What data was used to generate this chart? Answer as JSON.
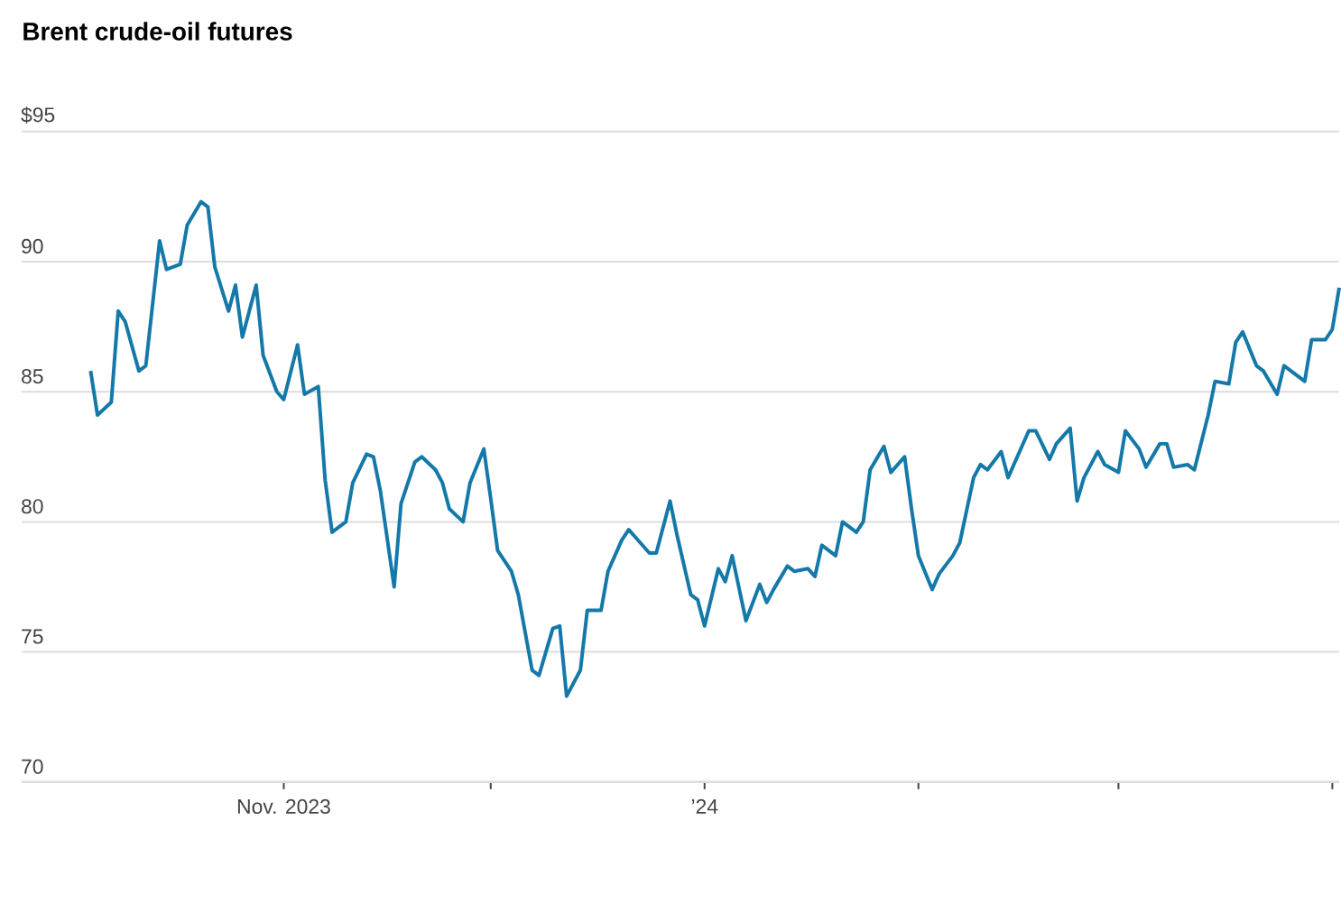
{
  "chart_data": {
    "type": "line",
    "title": "Brent crude-oil futures",
    "x": [
      "2023-10-04",
      "2023-10-05",
      "2023-10-07",
      "2023-10-08",
      "2023-10-09",
      "2023-10-11",
      "2023-10-12",
      "2023-10-14",
      "2023-10-15",
      "2023-10-17",
      "2023-10-18",
      "2023-10-20",
      "2023-10-21",
      "2023-10-22",
      "2023-10-24",
      "2023-10-25",
      "2023-10-26",
      "2023-10-28",
      "2023-10-29",
      "2023-10-31",
      "2023-11-01",
      "2023-11-03",
      "2023-11-04",
      "2023-11-06",
      "2023-11-07",
      "2023-11-08",
      "2023-11-10",
      "2023-11-11",
      "2023-11-13",
      "2023-11-14",
      "2023-11-15",
      "2023-11-17",
      "2023-11-18",
      "2023-11-20",
      "2023-11-21",
      "2023-11-23",
      "2023-11-24",
      "2023-11-25",
      "2023-11-27",
      "2023-11-28",
      "2023-11-30",
      "2023-12-01",
      "2023-12-02",
      "2023-12-04",
      "2023-12-05",
      "2023-12-07",
      "2023-12-08",
      "2023-12-10",
      "2023-12-11",
      "2023-12-12",
      "2023-12-14",
      "2023-12-15",
      "2023-12-17",
      "2023-12-18",
      "2023-12-20",
      "2023-12-21",
      "2023-12-22",
      "2023-12-24",
      "2023-12-25",
      "2023-12-27",
      "2023-12-28",
      "2023-12-30",
      "2023-12-31",
      "2024-01-01",
      "2024-01-03",
      "2024-01-04",
      "2024-01-05",
      "2024-01-07",
      "2024-01-09",
      "2024-01-10",
      "2024-01-11",
      "2024-01-13",
      "2024-01-14",
      "2024-01-16",
      "2024-01-17",
      "2024-01-18",
      "2024-01-20",
      "2024-01-21",
      "2024-01-23",
      "2024-01-24",
      "2024-01-25",
      "2024-01-27",
      "2024-01-28",
      "2024-01-30",
      "2024-01-31",
      "2024-02-01",
      "2024-02-03",
      "2024-02-04",
      "2024-02-06",
      "2024-02-07",
      "2024-02-09",
      "2024-02-10",
      "2024-02-11",
      "2024-02-13",
      "2024-02-14",
      "2024-02-16",
      "2024-02-17",
      "2024-02-18",
      "2024-02-20",
      "2024-02-21",
      "2024-02-23",
      "2024-02-24",
      "2024-02-25",
      "2024-02-27",
      "2024-02-28",
      "2024-03-01",
      "2024-03-02",
      "2024-03-04",
      "2024-03-05",
      "2024-03-07",
      "2024-03-08",
      "2024-03-09",
      "2024-03-11",
      "2024-03-12",
      "2024-03-14",
      "2024-03-15",
      "2024-03-17",
      "2024-03-18",
      "2024-03-19",
      "2024-03-21",
      "2024-03-22",
      "2024-03-24",
      "2024-03-25",
      "2024-03-27",
      "2024-03-28",
      "2024-03-29",
      "2024-03-31",
      "2024-04-01",
      "2024-04-02"
    ],
    "values": [
      85.8,
      84.1,
      84.6,
      88.1,
      87.7,
      85.8,
      86.0,
      90.8,
      89.7,
      89.9,
      91.4,
      92.3,
      92.1,
      89.8,
      88.1,
      89.1,
      87.1,
      89.1,
      86.4,
      85.0,
      84.7,
      86.8,
      84.9,
      85.2,
      81.6,
      79.6,
      80.0,
      81.5,
      82.6,
      82.5,
      81.2,
      77.5,
      80.7,
      82.3,
      82.5,
      82.0,
      81.5,
      80.5,
      80.0,
      81.5,
      82.8,
      80.9,
      78.9,
      78.1,
      77.2,
      74.3,
      74.1,
      75.9,
      76.0,
      73.3,
      74.3,
      76.6,
      76.6,
      78.1,
      79.3,
      79.7,
      79.4,
      78.8,
      78.8,
      80.8,
      79.5,
      77.2,
      77.0,
      76.0,
      78.2,
      77.7,
      78.7,
      76.2,
      77.6,
      76.9,
      77.4,
      78.3,
      78.1,
      78.2,
      77.9,
      79.1,
      78.7,
      80.0,
      79.6,
      80.0,
      82.0,
      82.9,
      81.9,
      82.5,
      80.5,
      78.7,
      77.4,
      78.0,
      78.7,
      79.2,
      81.7,
      82.2,
      82.0,
      82.7,
      81.7,
      82.9,
      83.5,
      83.5,
      82.4,
      83.0,
      83.6,
      80.8,
      81.7,
      82.7,
      82.2,
      81.9,
      83.5,
      82.8,
      82.1,
      83.0,
      83.0,
      82.1,
      82.2,
      82.0,
      84.1,
      85.4,
      85.3,
      86.9,
      87.3,
      86.0,
      85.8,
      84.9,
      86.0,
      85.6,
      85.4,
      87.0,
      87.0,
      87.4,
      89.0
    ],
    "color": "#1479a9",
    "xlim": [
      "2023-09-24",
      "2024-04-02"
    ],
    "ylim": [
      70,
      95
    ],
    "xticks": [
      {
        "value": "2023-11-01",
        "label": "Nov. 2023"
      },
      {
        "value": "2023-12-01",
        "label": null
      },
      {
        "value": "2024-01-01",
        "label": "’24"
      },
      {
        "value": "2024-02-01",
        "label": null
      },
      {
        "value": "2024-03-01",
        "label": null
      },
      {
        "value": "2024-04-01",
        "label": null
      }
    ],
    "yticks": [
      70,
      75,
      80,
      85,
      90,
      {
        "value": 95,
        "label": "$95"
      }
    ],
    "grid": "y"
  }
}
